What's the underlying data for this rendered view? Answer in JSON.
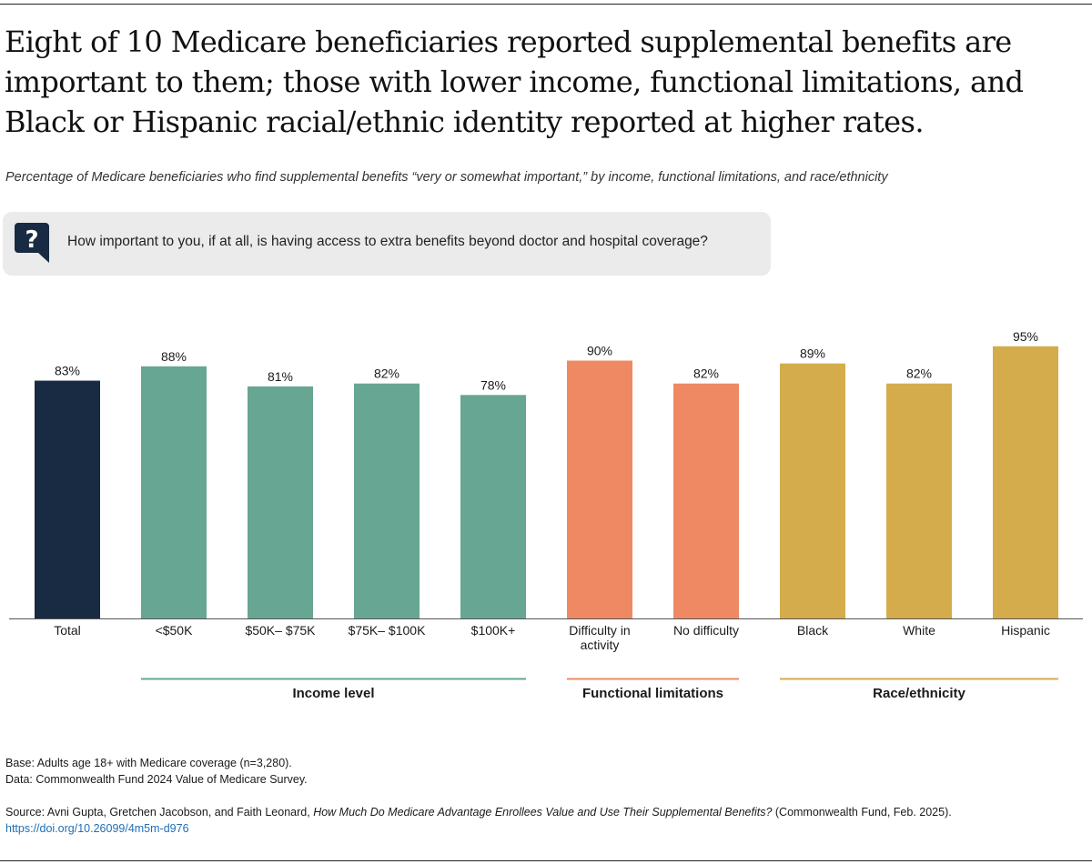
{
  "title": "Eight of 10 Medicare beneficiaries reported supplemental benefits are important to them; those with lower income, functional limitations, and Black or Hispanic racial/ethnic identity reported at higher rates.",
  "subtitle": "Percentage of Medicare beneficiaries who find supplemental benefits “very or somewhat important,” by income, functional limitations, and race/ethnicity",
  "question": {
    "icon": "question-mark-icon",
    "text": "How important to you, if at all, is having access to extra benefits beyond doctor and hospital coverage?"
  },
  "colors": {
    "total": "#182b42",
    "income": "#67a693",
    "functional": "#ef8963",
    "race": "#d4ac4b",
    "icon": "#182b42"
  },
  "chart_data": {
    "type": "bar",
    "title": "Percentage of Medicare beneficiaries who find supplemental benefits “very or somewhat important,” by income, functional limitations, and race/ethnicity",
    "xlabel": "",
    "ylabel": "",
    "ylim": [
      0,
      100
    ],
    "grid": false,
    "categories": [
      "Total",
      "<$50K",
      "$50K– $75K",
      "$75K– $100K",
      "$100K+",
      "Difficulty in activity",
      "No difficulty",
      "Black",
      "White",
      "Hispanic"
    ],
    "category_lines": [
      [
        "Total"
      ],
      [
        "<$50K"
      ],
      [
        "$50K– $75K"
      ],
      [
        "$75K– $100K"
      ],
      [
        "$100K+"
      ],
      [
        "Difficulty in",
        "activity"
      ],
      [
        "No difficulty"
      ],
      [
        "Black"
      ],
      [
        "White"
      ],
      [
        "Hispanic"
      ]
    ],
    "values": [
      83,
      88,
      81,
      82,
      78,
      90,
      82,
      89,
      82,
      95
    ],
    "value_labels": [
      "83%",
      "88%",
      "81%",
      "82%",
      "78%",
      "90%",
      "82%",
      "89%",
      "82%",
      "95%"
    ],
    "bar_groups": [
      "total",
      "income",
      "income",
      "income",
      "income",
      "functional",
      "functional",
      "race",
      "race",
      "race"
    ],
    "groups": [
      {
        "key": "income",
        "label": "Income level",
        "start": 1,
        "end": 4
      },
      {
        "key": "functional",
        "label": "Functional limitations",
        "start": 5,
        "end": 6
      },
      {
        "key": "race",
        "label": "Race/ethnicity",
        "start": 7,
        "end": 9
      }
    ]
  },
  "notes": {
    "base": "Base: Adults age 18+ with Medicare coverage (n=3,280).",
    "data": "Data: Commonwealth Fund 2024 Value of Medicare Survey.",
    "source_prefix": "Source: Avni Gupta, Gretchen Jacobson, and Faith Leonard, ",
    "source_title": "How Much Do Medicare Advantage Enrollees Value and Use Their Supplemental Benefits?",
    "source_suffix": " (Commonwealth Fund, Feb. 2025).",
    "doi": "https://doi.org/10.26099/4m5m-d976"
  }
}
